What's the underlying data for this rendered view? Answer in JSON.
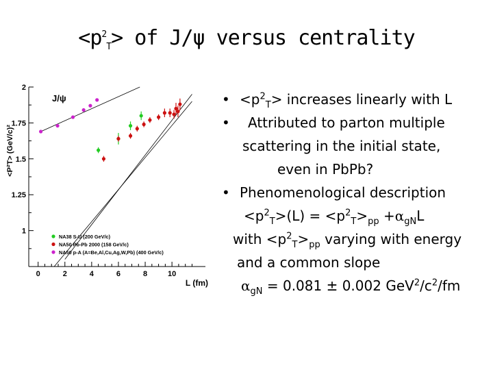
{
  "slide": {
    "title": {
      "pre": "<p",
      "sup": "2",
      "sub": "T",
      "post": "> of J/ψ versus centrality"
    }
  },
  "bullets": {
    "b1": {
      "marker": "•",
      "t1": "<p",
      "sup": "2",
      "sub": "T",
      "t2": "> increases linearly with L"
    },
    "b2": {
      "marker": "•",
      "line1": "Attributed to parton multiple",
      "line2": "scattering in the initial state,",
      "line3": "even in PbPb?"
    },
    "b3": {
      "marker": "•",
      "line1": "Phenomenological description",
      "f_a": "<p",
      "f_a_sup": "2",
      "f_a_sub": "T",
      "f_b": ">(L) = <p",
      "f_b_sup": "2",
      "f_b_sub": "T",
      "f_c": ">",
      "f_c_sub": "pp",
      "f_d": " +",
      "f_alpha": "α",
      "f_alpha_sub": "gN",
      "f_e": "L",
      "with_a": "with <p",
      "with_sup": "2",
      "with_sub": "T",
      "with_b": ">",
      "with_pp": "pp",
      "with_c": " varying with energy",
      "common": "and a common slope",
      "s_alpha": "α",
      "s_sub": "gN",
      "s_a": " = 0.081 ± 0.002 GeV",
      "s_sup1": "2",
      "s_b": "/c",
      "s_sup2": "2",
      "s_c": "/fm"
    }
  },
  "chart_data": {
    "type": "scatter",
    "panel_label": "J/ψ",
    "xlabel": "L (fm)",
    "ylabel": "<P²T> (GeV/c)²",
    "xlim": [
      -0.7,
      12.5
    ],
    "ylim": [
      0.75,
      2.0
    ],
    "x_ticks": [
      0,
      2,
      4,
      6,
      8,
      10
    ],
    "y_ticks": [
      {
        "value": 1,
        "label": "1"
      },
      {
        "value": 1.25,
        "label": "1.25"
      },
      {
        "value": 1.5,
        "label": "1.5"
      },
      {
        "value": 1.75,
        "label": "1.75"
      },
      {
        "value": 2,
        "label": "2"
      }
    ],
    "series": [
      {
        "name": "NA38 S-U (200 GeV/c)",
        "color": "#22cc22",
        "points": [
          {
            "x": 4.5,
            "y": 1.56,
            "err": 0.02
          },
          {
            "x": 6.0,
            "y": 1.64,
            "err": 0.04
          },
          {
            "x": 6.9,
            "y": 1.73,
            "err": 0.03
          },
          {
            "x": 7.7,
            "y": 1.8,
            "err": 0.03
          }
        ]
      },
      {
        "name": "NA50 Pb-Pb 2000 (158 GeV/c)",
        "color": "#cc1111",
        "points": [
          {
            "x": 4.9,
            "y": 1.5,
            "err": 0.02
          },
          {
            "x": 6.0,
            "y": 1.64,
            "err": 0.02
          },
          {
            "x": 6.9,
            "y": 1.66,
            "err": 0.02
          },
          {
            "x": 7.4,
            "y": 1.71,
            "err": 0.02
          },
          {
            "x": 7.9,
            "y": 1.74,
            "err": 0.02
          },
          {
            "x": 8.35,
            "y": 1.77,
            "err": 0.02
          },
          {
            "x": 9.0,
            "y": 1.79,
            "err": 0.02
          },
          {
            "x": 9.45,
            "y": 1.82,
            "err": 0.03
          },
          {
            "x": 9.85,
            "y": 1.82,
            "err": 0.03
          },
          {
            "x": 10.15,
            "y": 1.81,
            "err": 0.03
          },
          {
            "x": 10.3,
            "y": 1.85,
            "err": 0.04
          },
          {
            "x": 10.45,
            "y": 1.83,
            "err": 0.04
          },
          {
            "x": 10.6,
            "y": 1.88,
            "err": 0.04
          }
        ]
      },
      {
        "name": "NA50 p-A (A=Be,Al,Cu,Ag,W,Pb) (400 GeV/c)",
        "color": "#cc22cc",
        "points": [
          {
            "x": 0.2,
            "y": 1.69,
            "err": 0.01
          },
          {
            "x": 1.45,
            "y": 1.73,
            "err": 0.01
          },
          {
            "x": 2.6,
            "y": 1.79,
            "err": 0.01
          },
          {
            "x": 3.4,
            "y": 1.84,
            "err": 0.01
          },
          {
            "x": 3.9,
            "y": 1.87,
            "err": 0.01
          },
          {
            "x": 4.4,
            "y": 1.91,
            "err": 0.01
          }
        ]
      }
    ],
    "fit_lines": [
      {
        "x1": 0.2,
        "y1": 1.69,
        "x2": 7.6,
        "y2": 2.0
      },
      {
        "x1": 2.0,
        "y1": 0.8,
        "x2": 11.5,
        "y2": 1.95
      },
      {
        "x1": 1.2,
        "y1": 0.75,
        "x2": 11.5,
        "y2": 1.9
      }
    ]
  }
}
